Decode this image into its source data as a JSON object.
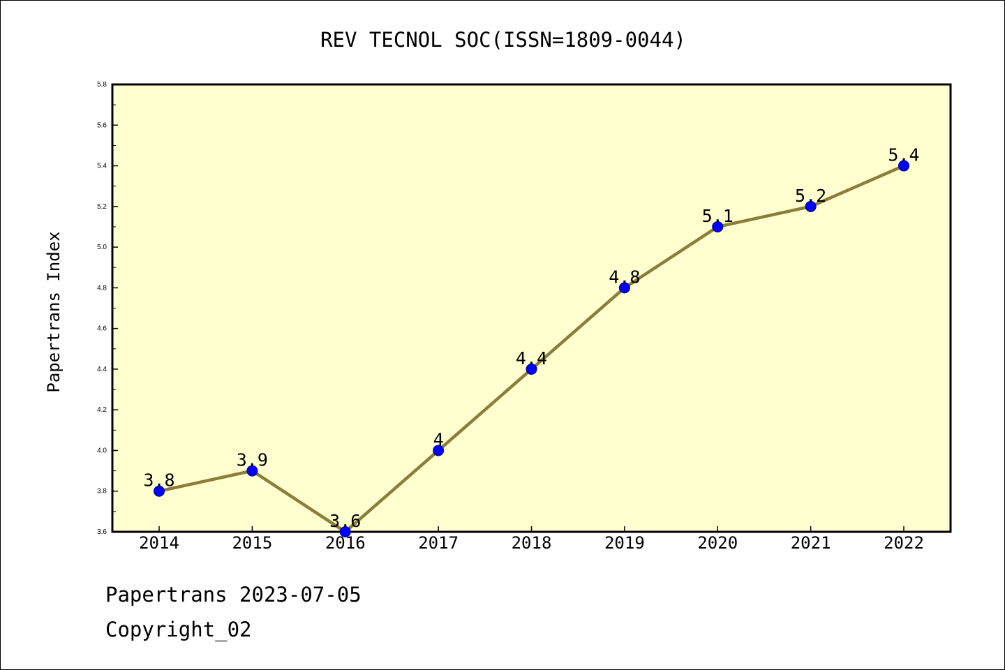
{
  "chart_data": {
    "type": "line",
    "title": "REV TECNOL SOC(ISSN=1809-0044)",
    "xlabel": "",
    "ylabel": "Papertrans Index",
    "categories": [
      "2014",
      "2015",
      "2016",
      "2017",
      "2018",
      "2019",
      "2020",
      "2021",
      "2022"
    ],
    "series": [
      {
        "values": [
          3.8,
          3.9,
          3.6,
          4.0,
          4.4,
          4.8,
          5.1,
          5.2,
          5.4
        ],
        "data_labels": [
          "3.8",
          "3.9",
          "3.6",
          "4",
          "4.4",
          "4.8",
          "5.1",
          "5.2",
          "5.4"
        ]
      }
    ],
    "ylim": [
      3.6,
      5.8
    ],
    "yticks": [
      "3.6",
      "3.8",
      "4.0",
      "4.2",
      "4.4",
      "4.6",
      "4.8",
      "5.0",
      "5.2",
      "5.4",
      "5.6",
      "5.8"
    ],
    "grid": false,
    "legend": "none",
    "colors": {
      "plot_background": "#ffffd0",
      "line": "#8b7d3a",
      "marker": "#0000ff",
      "marker_edge": "#000080",
      "axes": "#000000"
    }
  },
  "footer": {
    "date_line": "Papertrans 2023-07-05",
    "copyright": "Copyright_02"
  }
}
